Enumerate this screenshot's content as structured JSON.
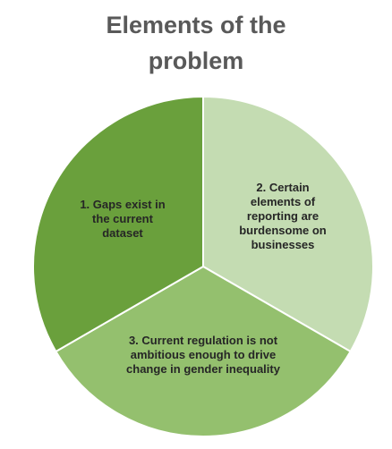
{
  "chart_data": {
    "type": "pie",
    "title": "Elements of the\nproblem",
    "slices": [
      {
        "label": "1. Gaps exist in the current dataset",
        "label_lines": [
          "1. Gaps exist in",
          "the current",
          "dataset"
        ],
        "value": 33.33,
        "color": "#6aa03c"
      },
      {
        "label": "2. Certain elements of reporting are burdensome on businesses",
        "label_lines": [
          "2. Certain",
          "elements of",
          "reporting are",
          "burdensome on",
          "businesses"
        ],
        "value": 33.33,
        "color": "#c4dcb2"
      },
      {
        "label": "3. Current regulation is not ambitious enough to drive change in gender inequality",
        "label_lines": [
          "3. Current regulation is not",
          "ambitious enough to drive",
          "change in gender inequality"
        ],
        "value": 33.34,
        "color": "#94c06e"
      }
    ],
    "legend": "none"
  }
}
